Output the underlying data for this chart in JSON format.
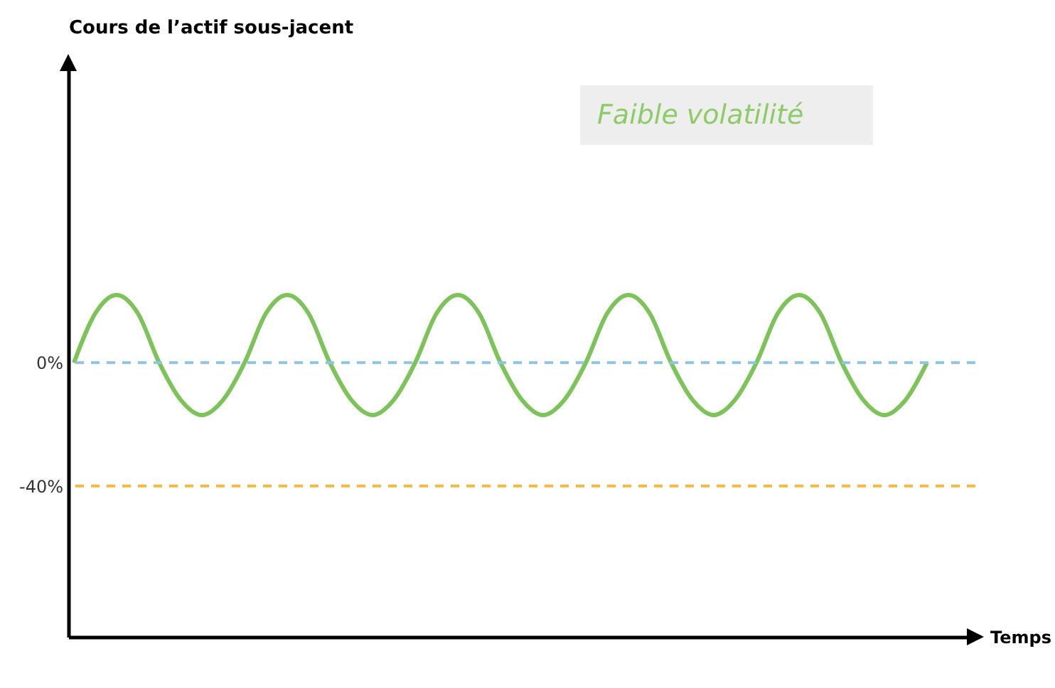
{
  "chart_data": {
    "type": "line",
    "xlabel": "Temps",
    "ylabel": "Cours de l’actif sous-jacent",
    "annotations": [
      "Faible volatilité"
    ],
    "categories": [
      null,
      null,
      null,
      null,
      null,
      null,
      null,
      null,
      null,
      null,
      null,
      null,
      null,
      null,
      null,
      null,
      null,
      null,
      null,
      null,
      null,
      null,
      null,
      null,
      null,
      null,
      null,
      null,
      null,
      null,
      null,
      null,
      null,
      null,
      null,
      null,
      null,
      null,
      null,
      null,
      null
    ],
    "series": [
      {
        "color": "#7cc35a",
        "values": [
          0,
          16,
          22,
          16,
          0,
          -12,
          -17,
          -12,
          0,
          16,
          22,
          16,
          0,
          -12,
          -17,
          -12,
          0,
          16,
          22,
          16,
          0,
          -12,
          -17,
          -12,
          0,
          16,
          22,
          16,
          0,
          -12,
          -17,
          -12,
          0,
          16,
          22,
          16,
          0,
          -12,
          -17,
          -12,
          0
        ]
      }
    ],
    "ylim": [
      -89,
      97
    ],
    "yticks": [
      {
        "value": 0,
        "label": "0%"
      },
      {
        "value": -40,
        "label": "-40%"
      }
    ],
    "ref_lines": [
      {
        "axis": "y",
        "value": 0,
        "color": "#8ec5e0",
        "line_style": "dashed"
      },
      {
        "axis": "y",
        "value": -40,
        "color": "#f5b942",
        "line_style": "dashed"
      }
    ],
    "tick_labels": "y",
    "grid": false,
    "line_style": "solid"
  }
}
